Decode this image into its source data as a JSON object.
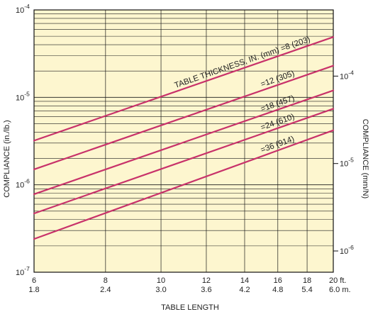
{
  "colors": {
    "plot_background": "#fdf6cf",
    "grid": "#1a1a1a",
    "curve": "#c8326a",
    "text": "#222222"
  },
  "chart_data": {
    "type": "line",
    "title": "",
    "xlabel": "TABLE LENGTH",
    "ylabel_left": "COMPLIANCE (in./lb.)",
    "ylabel_right": "COMPLIANCE (mm/N)",
    "xscale": "log",
    "yscale": "log",
    "xlim": [
      6,
      20
    ],
    "ylim": [
      1e-07,
      0.0001
    ],
    "grid": true,
    "x_ticks_ft": [
      "6",
      "8",
      "10",
      "12",
      "14",
      "16",
      "18",
      "20 ft."
    ],
    "x_ticks_m": [
      "1.8",
      "2.4",
      "3.0",
      "3.6",
      "4.2",
      "4.8",
      "5.4",
      "6.0 m."
    ],
    "y_ticks_left": [
      {
        "value": 1e-07,
        "base": "10",
        "exp": "-7"
      },
      {
        "value": 1e-06,
        "base": "10",
        "exp": "-6"
      },
      {
        "value": 1e-05,
        "base": "10",
        "exp": "-5"
      },
      {
        "value": 0.0001,
        "base": "10",
        "exp": "-4"
      }
    ],
    "y_ticks_right": [
      {
        "value_in_per_lb": 1.75e-05,
        "base": "10",
        "exp": "-4"
      },
      {
        "value_in_per_lb": 1.75e-06,
        "base": "10",
        "exp": "-5"
      },
      {
        "value_in_per_lb": 1.75e-07,
        "base": "10",
        "exp": "-6"
      }
    ],
    "series_title": "TABLE THICKNESS, IN. (mm)",
    "series": [
      {
        "name": "=8 (203)",
        "x": [
          6,
          20
        ],
        "y": [
          3.2e-06,
          4.9e-05
        ]
      },
      {
        "name": "=12 (305)",
        "x": [
          6,
          20
        ],
        "y": [
          1.5e-06,
          2.3e-05
        ]
      },
      {
        "name": "=18 (457)",
        "x": [
          6,
          20
        ],
        "y": [
          7.8e-07,
          1.2e-05
        ]
      },
      {
        "name": "=24 (610)",
        "x": [
          6,
          20
        ],
        "y": [
          4.7e-07,
          7.4e-06
        ]
      },
      {
        "name": "=36 (914)",
        "x": [
          6,
          20
        ],
        "y": [
          2.4e-07,
          4.2e-06
        ]
      }
    ]
  }
}
